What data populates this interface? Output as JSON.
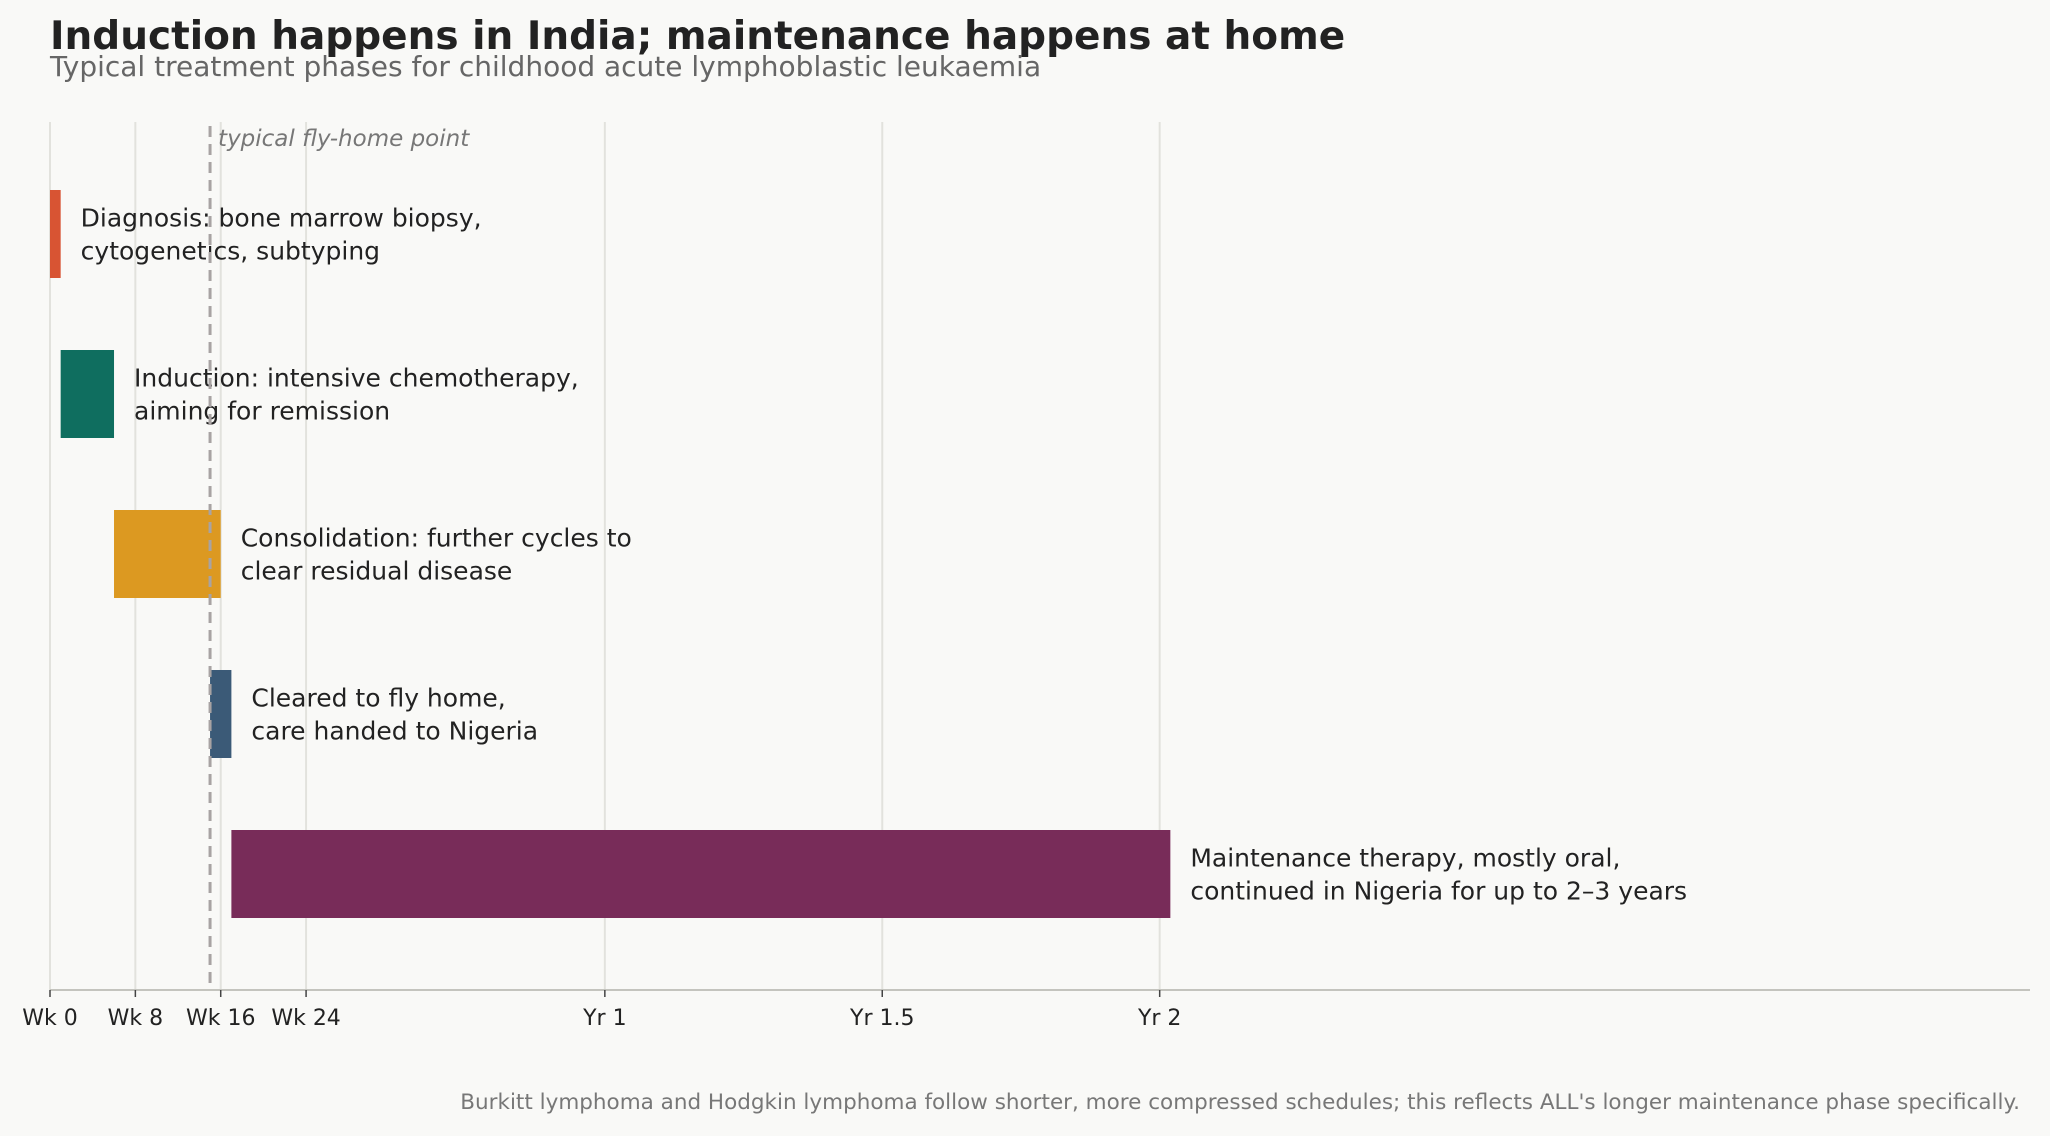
{
  "title": "Induction happens in India; maintenance happens at home",
  "subtitle": "Typical treatment phases for childhood acute lymphoblastic leukaemia",
  "footnote": "Burkitt lymphoma and Hodgkin lymphoma follow shorter, more compressed schedules; this reflects ALL's longer maintenance phase specifically.",
  "chart_data": {
    "type": "gantt",
    "x_unit": "weeks",
    "xlim": [
      0,
      142
    ],
    "grid": "vertical",
    "ticks": [
      {
        "value": 0,
        "label": "Wk 0"
      },
      {
        "value": 8,
        "label": "Wk 8"
      },
      {
        "value": 16,
        "label": "Wk 16"
      },
      {
        "value": 24,
        "label": "Wk 24"
      },
      {
        "value": 52,
        "label": "Yr 1"
      },
      {
        "value": 78,
        "label": "Yr 1.5"
      },
      {
        "value": 104,
        "label": "Yr 2"
      }
    ],
    "reference_line": {
      "value": 15,
      "label": "typical fly-home point"
    },
    "phases": [
      {
        "start": 0,
        "end": 1,
        "color": "#d85433",
        "label_lines": [
          "Diagnosis: bone marrow biopsy,",
          "cytogenetics, subtyping"
        ]
      },
      {
        "start": 1,
        "end": 6,
        "color": "#0f6e5f",
        "label_lines": [
          "Induction: intensive chemotherapy,",
          "aiming for remission"
        ]
      },
      {
        "start": 6,
        "end": 16,
        "color": "#dc9921",
        "label_lines": [
          "Consolidation: further cycles to",
          "clear residual disease"
        ]
      },
      {
        "start": 15,
        "end": 17,
        "color": "#3b5a77",
        "label_lines": [
          "Cleared to fly home,",
          "care handed to Nigeria"
        ]
      },
      {
        "start": 17,
        "end": 105,
        "color": "#782c59",
        "label_lines": [
          "Maintenance therapy, mostly oral,",
          "continued in Nigeria for up to 2–3 years"
        ]
      }
    ]
  }
}
